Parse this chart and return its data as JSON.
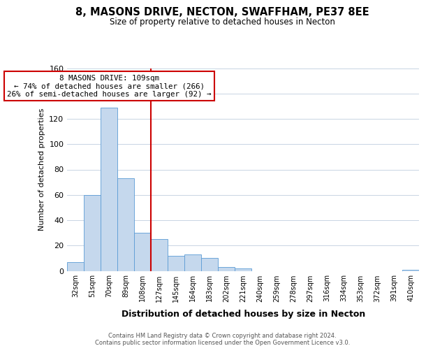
{
  "title": "8, MASONS DRIVE, NECTON, SWAFFHAM, PE37 8EE",
  "subtitle": "Size of property relative to detached houses in Necton",
  "xlabel": "Distribution of detached houses by size in Necton",
  "ylabel": "Number of detached properties",
  "bar_labels": [
    "32sqm",
    "51sqm",
    "70sqm",
    "89sqm",
    "108sqm",
    "127sqm",
    "145sqm",
    "164sqm",
    "183sqm",
    "202sqm",
    "221sqm",
    "240sqm",
    "259sqm",
    "278sqm",
    "297sqm",
    "316sqm",
    "334sqm",
    "353sqm",
    "372sqm",
    "391sqm",
    "410sqm"
  ],
  "bar_values": [
    7,
    60,
    129,
    73,
    30,
    25,
    12,
    13,
    10,
    3,
    2,
    0,
    0,
    0,
    0,
    0,
    0,
    0,
    0,
    0,
    1
  ],
  "bar_color": "#c5d8ed",
  "bar_edge_color": "#5b9bd5",
  "vline_color": "#cc0000",
  "annotation_text": "8 MASONS DRIVE: 109sqm\n← 74% of detached houses are smaller (266)\n26% of semi-detached houses are larger (92) →",
  "annotation_box_color": "#ffffff",
  "annotation_box_edge_color": "#cc0000",
  "ylim": [
    0,
    160
  ],
  "yticks": [
    0,
    20,
    40,
    60,
    80,
    100,
    120,
    140,
    160
  ],
  "footer_line1": "Contains HM Land Registry data © Crown copyright and database right 2024.",
  "footer_line2": "Contains public sector information licensed under the Open Government Licence v3.0.",
  "background_color": "#ffffff",
  "grid_color": "#c8d4e3"
}
